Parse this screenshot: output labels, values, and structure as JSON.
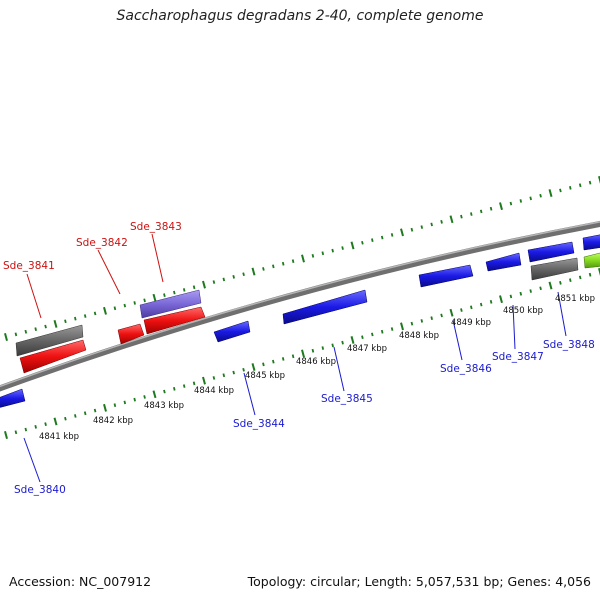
{
  "title": "Saccharophagus degradans 2-40, complete genome",
  "footer": {
    "accession": "Accession: NC_007912",
    "topology": "Topology: circular; Length: 5,057,531 bp; Genes: 4,056"
  },
  "colors": {
    "red": "#ee1111",
    "blue": "#1a1ae6",
    "gray": "#666666",
    "purple": "#7b68d8",
    "green": "#88dd22",
    "tick": "#1e7a1e",
    "backbone": "#8a8a8a",
    "label_red": "#cc1111",
    "label_blue": "#1a1ad0"
  },
  "scale_labels": [
    "4841 kbp",
    "4842 kbp",
    "4843 kbp",
    "4844 kbp",
    "4845 kbp",
    "4846 kbp",
    "4847 kbp",
    "4848 kbp",
    "4849 kbp",
    "4850 kbp",
    "4851 kbp"
  ],
  "gene_labels": [
    {
      "text": "Sde_3840",
      "strand": "minus"
    },
    {
      "text": "Sde_3841",
      "strand": "plus"
    },
    {
      "text": "Sde_3842",
      "strand": "plus"
    },
    {
      "text": "Sde_3843",
      "strand": "plus"
    },
    {
      "text": "Sde_3844",
      "strand": "minus"
    },
    {
      "text": "Sde_3845",
      "strand": "minus"
    },
    {
      "text": "Sde_3846",
      "strand": "minus"
    },
    {
      "text": "Sde_3847",
      "strand": "minus"
    },
    {
      "text": "Sde_3848",
      "strand": "minus"
    }
  ]
}
